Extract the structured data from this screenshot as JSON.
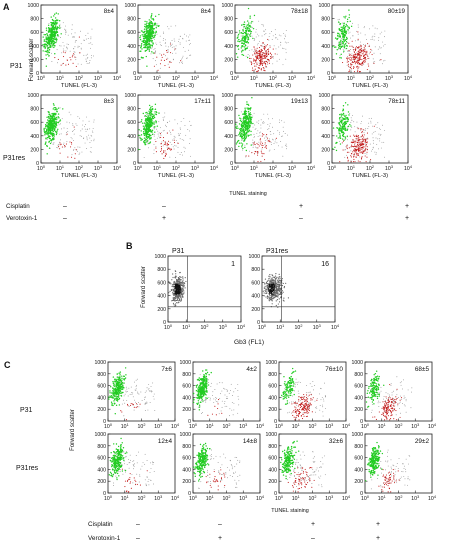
{
  "figure": {
    "panel_A": {
      "letter": "A",
      "row_labels": [
        "P31",
        "P31res"
      ],
      "ylabel": "Forward scatter",
      "xlabel": "TUNEL (FL-3)",
      "bottom_label": "TUNEL staining",
      "y_ticks": [
        "0",
        "200",
        "400",
        "600",
        "800",
        "1000"
      ],
      "x_ticks": [
        {
          "base": "10",
          "exp": "0"
        },
        {
          "base": "10",
          "exp": "1"
        },
        {
          "base": "10",
          "exp": "2"
        },
        {
          "base": "10",
          "exp": "3"
        },
        {
          "base": "10",
          "exp": "4"
        }
      ],
      "annotations": [
        [
          "8±4",
          "8±4",
          "78±18",
          "80±19"
        ],
        [
          "8±3",
          "17±11",
          "19±13",
          "78±11"
        ]
      ],
      "treatments": [
        {
          "name": "Cisplatin",
          "signs": [
            "–",
            "–",
            "+",
            "+"
          ]
        },
        {
          "name": "Verotoxin-1",
          "signs": [
            "–",
            "+",
            "–",
            "+"
          ]
        }
      ]
    },
    "panel_B": {
      "letter": "B",
      "titles": [
        "P31",
        "P31res"
      ],
      "annotations": [
        "1",
        "16"
      ],
      "ylabel": "Forward scatter",
      "xlabel": "Gb3 (FL1)",
      "y_ticks": [
        "0",
        "200",
        "400",
        "600",
        "800",
        "1000"
      ],
      "x_ticks": [
        {
          "base": "10",
          "exp": "0"
        },
        {
          "base": "10",
          "exp": "1"
        },
        {
          "base": "10",
          "exp": "2"
        },
        {
          "base": "10",
          "exp": "3"
        },
        {
          "base": "10",
          "exp": "4"
        }
      ]
    },
    "panel_C": {
      "letter": "C",
      "row_labels": [
        "P31",
        "P31res"
      ],
      "ylabel": "Forward scatter",
      "bottom_label": "TUNEL staining",
      "y_ticks": [
        "0",
        "200",
        "400",
        "600",
        "800",
        "1000"
      ],
      "x_ticks": [
        {
          "base": "10",
          "exp": "0"
        },
        {
          "base": "10",
          "exp": "1"
        },
        {
          "base": "10",
          "exp": "2"
        },
        {
          "base": "10",
          "exp": "3"
        },
        {
          "base": "10",
          "exp": "4"
        }
      ],
      "annotations": [
        [
          "7±6",
          "4±2",
          "76±10",
          "68±5"
        ],
        [
          "12±4",
          "14±8",
          "32±6",
          "29±2"
        ]
      ],
      "treatments": [
        {
          "name": "Cisplatin",
          "signs": [
            "–",
            "–",
            "+",
            "+"
          ]
        },
        {
          "name": "Verotoxin-1",
          "signs": [
            "–",
            "+",
            "–",
            "+"
          ]
        }
      ]
    }
  },
  "chart_data": [
    {
      "type": "scatter",
      "panel": "A",
      "xlabel": "TUNEL (FL-3)",
      "ylabel": "Forward scatter",
      "xscale": "log",
      "xlim": [
        1,
        10000
      ],
      "ylim": [
        0,
        1000
      ],
      "colors": {
        "viable": "#22cc22",
        "apoptotic": "#c01818",
        "background": "#909090"
      },
      "plots": [
        {
          "row": "P31",
          "cisplatin": "–",
          "verotoxin": "–",
          "value": "8±4",
          "apoptotic_percent": 8
        },
        {
          "row": "P31",
          "cisplatin": "–",
          "verotoxin": "+",
          "value": "8±4",
          "apoptotic_percent": 8
        },
        {
          "row": "P31",
          "cisplatin": "+",
          "verotoxin": "–",
          "value": "78±18",
          "apoptotic_percent": 78
        },
        {
          "row": "P31",
          "cisplatin": "+",
          "verotoxin": "+",
          "value": "80±19",
          "apoptotic_percent": 80
        },
        {
          "row": "P31res",
          "cisplatin": "–",
          "verotoxin": "–",
          "value": "8±3",
          "apoptotic_percent": 8
        },
        {
          "row": "P31res",
          "cisplatin": "–",
          "verotoxin": "+",
          "value": "17±11",
          "apoptotic_percent": 17
        },
        {
          "row": "P31res",
          "cisplatin": "+",
          "verotoxin": "–",
          "value": "19±13",
          "apoptotic_percent": 19
        },
        {
          "row": "P31res",
          "cisplatin": "+",
          "verotoxin": "+",
          "value": "78±11",
          "apoptotic_percent": 78
        }
      ]
    },
    {
      "type": "scatter",
      "panel": "B",
      "xlabel": "Gb3 (FL1)",
      "ylabel": "Forward scatter",
      "xscale": "log",
      "xlim": [
        1,
        10000
      ],
      "ylim": [
        0,
        1000
      ],
      "gate": {
        "x": 12,
        "y": 230
      },
      "colors": {
        "cells": "#111111"
      },
      "plots": [
        {
          "title": "P31",
          "value": "1",
          "positive_percent": 1
        },
        {
          "title": "P31res",
          "value": "16",
          "positive_percent": 16
        }
      ]
    },
    {
      "type": "scatter",
      "panel": "C",
      "xlabel": "",
      "ylabel": "Forward scatter",
      "xscale": "log",
      "xlim": [
        1,
        10000
      ],
      "ylim": [
        0,
        1000
      ],
      "colors": {
        "viable": "#22cc22",
        "apoptotic": "#c01818",
        "background": "#909090"
      },
      "plots": [
        {
          "row": "P31",
          "cisplatin": "–",
          "verotoxin": "–",
          "value": "7±6",
          "apoptotic_percent": 7
        },
        {
          "row": "P31",
          "cisplatin": "–",
          "verotoxin": "+",
          "value": "4±2",
          "apoptotic_percent": 4
        },
        {
          "row": "P31",
          "cisplatin": "+",
          "verotoxin": "–",
          "value": "76±10",
          "apoptotic_percent": 76
        },
        {
          "row": "P31",
          "cisplatin": "+",
          "verotoxin": "+",
          "value": "68±5",
          "apoptotic_percent": 68
        },
        {
          "row": "P31res",
          "cisplatin": "–",
          "verotoxin": "–",
          "value": "12±4",
          "apoptotic_percent": 12
        },
        {
          "row": "P31res",
          "cisplatin": "–",
          "verotoxin": "+",
          "value": "14±8",
          "apoptotic_percent": 14
        },
        {
          "row": "P31res",
          "cisplatin": "+",
          "verotoxin": "–",
          "value": "32±6",
          "apoptotic_percent": 32
        },
        {
          "row": "P31res",
          "cisplatin": "+",
          "verotoxin": "+",
          "value": "29±2",
          "apoptotic_percent": 29
        }
      ]
    }
  ]
}
